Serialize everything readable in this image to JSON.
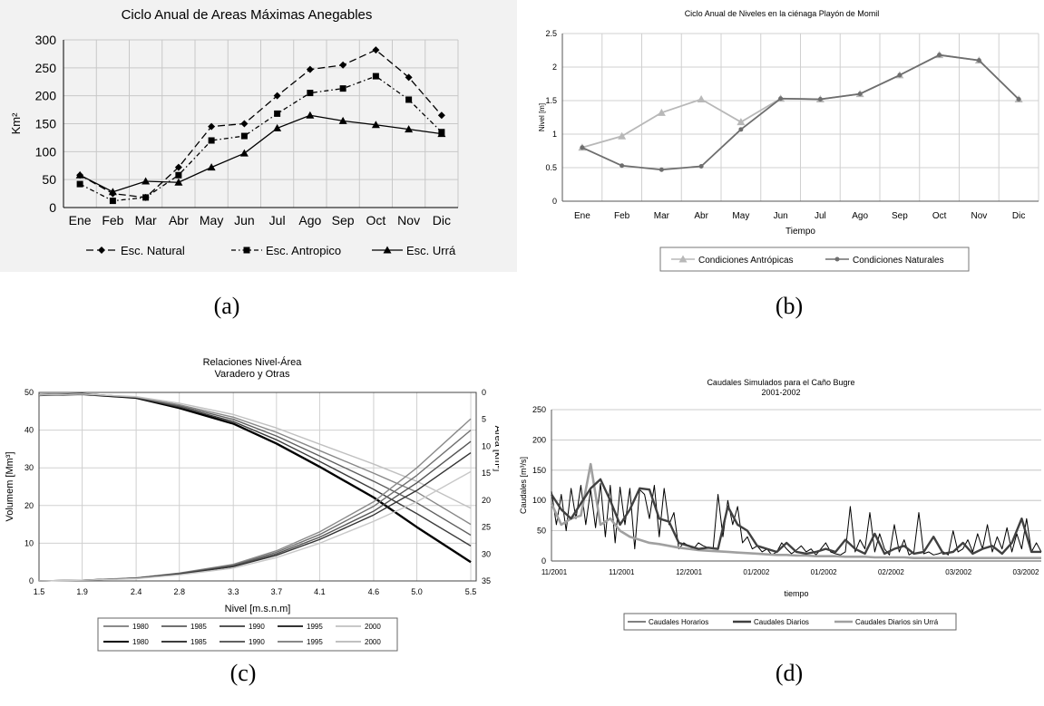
{
  "captions": [
    "(a)",
    "(b)",
    "(c)",
    "(d)"
  ],
  "chart_data": [
    {
      "type": "line",
      "title": "Ciclo Anual de Areas Máximas Anegables",
      "xlabel": "",
      "ylabel": "Km²",
      "ylim": [
        0,
        300
      ],
      "yticks": [
        0,
        50,
        100,
        150,
        200,
        250,
        300
      ],
      "categories": [
        "Ene",
        "Feb",
        "Mar",
        "Abr",
        "May",
        "Jun",
        "Jul",
        "Ago",
        "Sep",
        "Oct",
        "Nov",
        "Dic"
      ],
      "legend_position": "bottom",
      "series": [
        {
          "name": "Esc. Natural",
          "marker": "diamond",
          "dash": "dashed",
          "values": [
            58,
            25,
            18,
            72,
            145,
            150,
            200,
            247,
            255,
            282,
            233,
            165
          ]
        },
        {
          "name": "Esc. Antropico",
          "marker": "square",
          "dash": "dash-dot",
          "values": [
            42,
            12,
            18,
            58,
            120,
            128,
            168,
            205,
            213,
            235,
            193,
            135
          ]
        },
        {
          "name": "Esc. Urrá",
          "marker": "triangle",
          "dash": "solid",
          "values": [
            58,
            28,
            47,
            45,
            72,
            97,
            142,
            165,
            155,
            148,
            140,
            132
          ]
        }
      ]
    },
    {
      "type": "line",
      "title": "Ciclo Anual de Niveles en la ciénaga Playón de Momil",
      "xlabel": "Tiempo",
      "ylabel": "Nivel [m]",
      "ylim": [
        0,
        2.5
      ],
      "yticks": [
        0,
        0.5,
        1,
        1.5,
        2,
        2.5
      ],
      "categories": [
        "Ene",
        "Feb",
        "Mar",
        "Abr",
        "May",
        "Jun",
        "Jul",
        "Ago",
        "Sep",
        "Oct",
        "Nov",
        "Dic"
      ],
      "legend_position": "bottom",
      "series": [
        {
          "name": "Condiciones Antrópicas",
          "marker": "triangle",
          "color": "#b8b8b8",
          "values": [
            0.8,
            0.97,
            1.32,
            1.52,
            1.18,
            1.53,
            1.52,
            1.6,
            1.88,
            2.18,
            2.1,
            1.52
          ]
        },
        {
          "name": "Condiciones Naturales",
          "marker": "dot",
          "color": "#6e6e6e",
          "values": [
            0.8,
            0.53,
            0.47,
            0.52,
            1.07,
            1.53,
            1.52,
            1.6,
            1.88,
            2.18,
            2.1,
            1.52
          ]
        }
      ]
    },
    {
      "type": "line",
      "title": "Relaciones Nivel-Área\nVaradero y Otras",
      "xlabel": "Nivel [m.s.n.m]",
      "ylabel": "Volumem [Mm³]",
      "y2label": "Área [km²]",
      "xlim": [
        1.5,
        5.55
      ],
      "xticks": [
        "1.5",
        "1.9",
        "2.4",
        "2.8",
        "3.3",
        "3.7",
        "4.1",
        "4.6",
        "5.0",
        "5.5"
      ],
      "ylim": [
        0,
        50
      ],
      "yticks": [
        0,
        10,
        20,
        30,
        40,
        50
      ],
      "y2lim": [
        0,
        35
      ],
      "y2ticks": [
        0,
        5,
        10,
        15,
        20,
        25,
        30,
        35
      ],
      "y2_reversed": true,
      "legend_position": "bottom",
      "volume_series": [
        {
          "name": "1980",
          "color": "#8a8a8a",
          "x": [
            1.5,
            1.9,
            2.4,
            2.8,
            3.3,
            3.7,
            4.1,
            4.6,
            5.0,
            5.5
          ],
          "values": [
            0,
            0.2,
            0.8,
            2.1,
            4.4,
            8,
            13,
            21,
            30,
            43
          ]
        },
        {
          "name": "1985",
          "color": "#707070",
          "x": [
            1.5,
            1.9,
            2.4,
            2.8,
            3.3,
            3.7,
            4.1,
            4.6,
            5.0,
            5.5
          ],
          "values": [
            0,
            0.2,
            0.8,
            2.0,
            4.2,
            7.6,
            12.3,
            19.8,
            28,
            40
          ]
        },
        {
          "name": "1990",
          "color": "#555555",
          "x": [
            1.5,
            1.9,
            2.4,
            2.8,
            3.3,
            3.7,
            4.1,
            4.6,
            5.0,
            5.5
          ],
          "values": [
            0,
            0.2,
            0.7,
            1.9,
            4.0,
            7.2,
            11.6,
            18.5,
            26,
            37
          ]
        },
        {
          "name": "1995",
          "color": "#333333",
          "x": [
            1.5,
            1.9,
            2.4,
            2.8,
            3.3,
            3.7,
            4.1,
            4.6,
            5.0,
            5.5
          ],
          "values": [
            0,
            0.2,
            0.7,
            1.8,
            3.8,
            6.8,
            11,
            17.5,
            24,
            34
          ]
        },
        {
          "name": "2000",
          "color": "#c8c8c8",
          "x": [
            1.5,
            1.9,
            2.4,
            2.8,
            3.3,
            3.7,
            4.1,
            4.6,
            5.0,
            5.5
          ],
          "values": [
            0,
            0.2,
            0.6,
            1.6,
            3.4,
            6.2,
            10,
            15.8,
            21,
            29
          ]
        }
      ],
      "area_series": [
        {
          "name": "1980",
          "color": "#000000",
          "x": [
            1.5,
            1.9,
            2.4,
            2.8,
            3.3,
            3.7,
            4.1,
            4.6,
            5.0,
            5.5
          ],
          "values": [
            0.5,
            0.3,
            1.0,
            2.9,
            5.8,
            9.5,
            13.8,
            19.5,
            25,
            31.5
          ]
        },
        {
          "name": "1985",
          "color": "#3c3c3c",
          "x": [
            1.5,
            1.9,
            2.4,
            2.8,
            3.3,
            3.7,
            4.1,
            4.6,
            5.0,
            5.5
          ],
          "values": [
            0.5,
            0.3,
            0.95,
            2.7,
            5.4,
            8.8,
            12.8,
            18,
            22.5,
            28.5
          ]
        },
        {
          "name": "1990",
          "color": "#606060",
          "x": [
            1.5,
            1.9,
            2.4,
            2.8,
            3.3,
            3.7,
            4.1,
            4.6,
            5.0,
            5.5
          ],
          "values": [
            0.5,
            0.3,
            0.9,
            2.5,
            5.0,
            8.1,
            11.8,
            16.5,
            20.5,
            26.5
          ]
        },
        {
          "name": "1995",
          "color": "#888888",
          "x": [
            1.5,
            1.9,
            2.4,
            2.8,
            3.3,
            3.7,
            4.1,
            4.6,
            5.0,
            5.5
          ],
          "values": [
            0.5,
            0.3,
            0.85,
            2.3,
            4.6,
            7.4,
            10.8,
            15,
            18.5,
            24.5
          ]
        },
        {
          "name": "2000",
          "color": "#c0c0c0",
          "x": [
            1.5,
            1.9,
            2.4,
            2.8,
            3.3,
            3.7,
            4.1,
            4.6,
            5.0,
            5.5
          ],
          "values": [
            0.5,
            0.3,
            0.8,
            2.0,
            4.1,
            6.6,
            9.6,
            13.3,
            16.5,
            21.5
          ]
        }
      ]
    },
    {
      "type": "line",
      "title": "Caudales Simulados para el Caño Bugre\n2001-2002",
      "xlabel": "tiempo",
      "ylabel": "Caudales [m³/s]",
      "ylim": [
        0,
        250
      ],
      "yticks": [
        0,
        50,
        100,
        150,
        200,
        250
      ],
      "xticks": [
        "11/2001",
        "11/2001",
        "12/2001",
        "01/2002",
        "01/2002",
        "02/2002",
        "03/2002",
        "03/2002"
      ],
      "legend_position": "bottom",
      "series": [
        {
          "name": "Caudales Horarios",
          "color": "#000000",
          "width": 1,
          "t": [
            0,
            1,
            2,
            3,
            4,
            5,
            6,
            7,
            8,
            9,
            10,
            11,
            12,
            13,
            14,
            15,
            16,
            17,
            18,
            19,
            20,
            21,
            22,
            23,
            24,
            25,
            26,
            27,
            28,
            29,
            30,
            31,
            32,
            33,
            34,
            35,
            36,
            37,
            38,
            39,
            40,
            41,
            42,
            43,
            44,
            45,
            46,
            47,
            48,
            49,
            50,
            51,
            52,
            53,
            54,
            55,
            56,
            57,
            58,
            59,
            60,
            61,
            62,
            63,
            64,
            65,
            66,
            67,
            68,
            69,
            70,
            71,
            72,
            73,
            74,
            75,
            76,
            77,
            78,
            79,
            80,
            81,
            82,
            83,
            84,
            85,
            86,
            87,
            88,
            89,
            90,
            91,
            92,
            93,
            94,
            95,
            96,
            97,
            98,
            99,
            100
          ],
          "values": [
            115,
            60,
            110,
            50,
            120,
            70,
            125,
            60,
            118,
            55,
            128,
            40,
            125,
            30,
            122,
            60,
            120,
            20,
            118,
            110,
            70,
            125,
            40,
            120,
            60,
            80,
            20,
            30,
            25,
            20,
            30,
            25,
            22,
            20,
            110,
            40,
            100,
            60,
            90,
            30,
            40,
            20,
            25,
            15,
            20,
            10,
            15,
            30,
            20,
            12,
            18,
            25,
            15,
            20,
            10,
            20,
            30,
            15,
            12,
            10,
            15,
            90,
            15,
            35,
            20,
            80,
            15,
            45,
            20,
            10,
            60,
            15,
            35,
            10,
            15,
            80,
            12,
            15,
            10,
            12,
            15,
            10,
            50,
            15,
            20,
            35,
            15,
            45,
            20,
            60,
            15,
            40,
            20,
            55,
            15,
            45,
            20,
            70,
            15,
            30,
            15
          ]
        },
        {
          "name": "Caudales Diarios",
          "color": "#404040",
          "width": 2.4,
          "t": [
            0,
            2,
            4,
            6,
            8,
            10,
            12,
            14,
            16,
            18,
            20,
            22,
            24,
            26,
            28,
            30,
            32,
            34,
            36,
            38,
            40,
            42,
            44,
            46,
            48,
            50,
            52,
            54,
            56,
            58,
            60,
            62,
            64,
            66,
            68,
            70,
            72,
            74,
            76,
            78,
            80,
            82,
            84,
            86,
            88,
            90,
            92,
            94,
            96,
            98,
            100
          ],
          "values": [
            110,
            85,
            70,
            95,
            120,
            135,
            100,
            60,
            85,
            120,
            118,
            70,
            65,
            30,
            25,
            20,
            22,
            20,
            90,
            60,
            50,
            25,
            20,
            15,
            30,
            15,
            12,
            15,
            20,
            15,
            35,
            20,
            12,
            45,
            12,
            20,
            25,
            12,
            15,
            40,
            12,
            15,
            30,
            12,
            20,
            25,
            12,
            30,
            70,
            15,
            15
          ]
        },
        {
          "name": "Caudales Diarios sin Urrá",
          "color": "#a0a0a0",
          "width": 2.6,
          "t": [
            0,
            2,
            4,
            6,
            8,
            10,
            12,
            14,
            16,
            18,
            20,
            22,
            24,
            26,
            28,
            30,
            32,
            34,
            36,
            38,
            40,
            42,
            44,
            46,
            48,
            50,
            52,
            54,
            56,
            58,
            60,
            62,
            64,
            66,
            68,
            70,
            72,
            74,
            76,
            78,
            80,
            82,
            84,
            86,
            88,
            90,
            92,
            94,
            96,
            98,
            100
          ],
          "values": [
            95,
            60,
            70,
            75,
            160,
            60,
            70,
            50,
            40,
            35,
            30,
            28,
            25,
            22,
            20,
            18,
            17,
            16,
            15,
            14,
            13,
            12,
            11,
            10,
            10,
            9,
            9,
            8,
            8,
            8,
            7,
            7,
            7,
            6,
            6,
            6,
            6,
            5,
            5,
            5,
            5,
            5,
            5,
            5,
            5,
            5,
            5,
            5,
            5,
            5,
            5
          ]
        }
      ]
    }
  ]
}
